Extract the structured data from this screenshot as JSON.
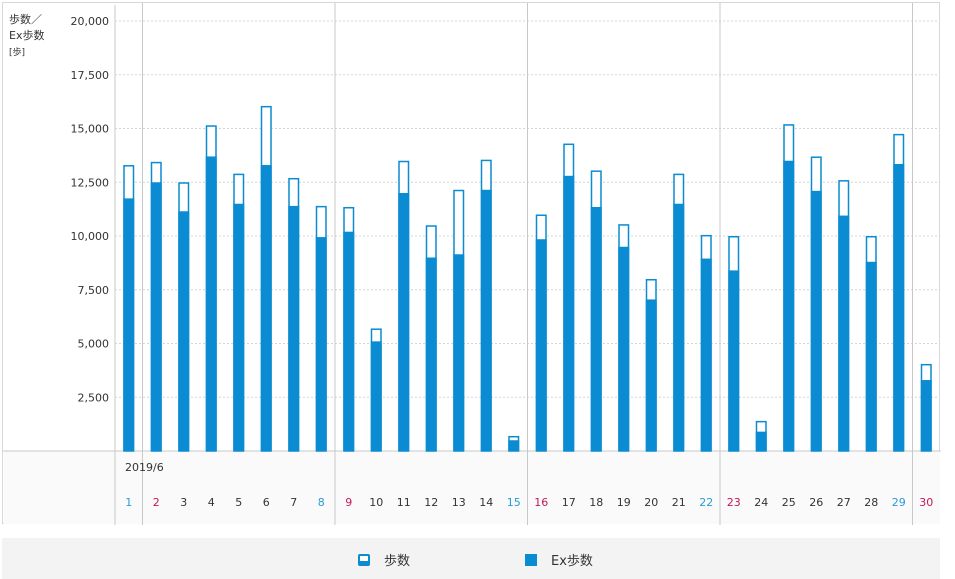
{
  "chart_data": {
    "type": "bar",
    "ylabel_lines": [
      "歩数／",
      "Ex歩数",
      "[歩]"
    ],
    "month_label": "2019/6",
    "ylim": [
      0,
      20000
    ],
    "yticks": [
      2500,
      5000,
      7500,
      10000,
      12500,
      15000,
      17500,
      20000
    ],
    "ytick_labels": [
      "2,500",
      "5,000",
      "7,500",
      "10,000",
      "12,500",
      "15,000",
      "17,500",
      "20,000"
    ],
    "categories": [
      "1",
      "2",
      "3",
      "4",
      "5",
      "6",
      "7",
      "8",
      "9",
      "10",
      "11",
      "12",
      "13",
      "14",
      "15",
      "16",
      "17",
      "18",
      "19",
      "20",
      "21",
      "22",
      "23",
      "24",
      "25",
      "26",
      "27",
      "28",
      "29",
      "30"
    ],
    "category_colors": [
      "#2a9bd6",
      "#c2185b",
      "#333333",
      "#333333",
      "#333333",
      "#333333",
      "#333333",
      "#2a9bd6",
      "#c2185b",
      "#333333",
      "#333333",
      "#333333",
      "#333333",
      "#333333",
      "#2a9bd6",
      "#c2185b",
      "#333333",
      "#333333",
      "#333333",
      "#333333",
      "#333333",
      "#2a9bd6",
      "#c2185b",
      "#333333",
      "#333333",
      "#333333",
      "#333333",
      "#333333",
      "#2a9bd6",
      "#c2185b"
    ],
    "week_separators_after": [
      "1",
      "8",
      "15",
      "22",
      "29"
    ],
    "series": [
      {
        "name": "歩数",
        "values": [
          13300,
          13450,
          12500,
          15150,
          12900,
          16050,
          12700,
          11400,
          11350,
          5700,
          13500,
          10500,
          12150,
          13550,
          700,
          11000,
          14300,
          13050,
          10550,
          8000,
          12900,
          10050,
          10000,
          1400,
          15200,
          13700,
          12600,
          10000,
          14750,
          4050
        ]
      },
      {
        "name": "Ex歩数",
        "values": [
          11750,
          12500,
          11150,
          13700,
          11500,
          13300,
          11400,
          9950,
          10200,
          5100,
          12000,
          9000,
          9150,
          12150,
          500,
          9850,
          12800,
          11350,
          9500,
          7050,
          11500,
          8950,
          8400,
          900,
          13500,
          12100,
          10950,
          8800,
          13350,
          3300
        ]
      }
    ],
    "colors": {
      "bar": "#0a8bd2",
      "grid": "#d4d4d4",
      "separator": "#c8c8c8",
      "axis_text": "#333333"
    },
    "grid": true,
    "legend_position": "bottom"
  },
  "legend": {
    "steps_label": "歩数",
    "ex_steps_label": "Ex歩数"
  }
}
